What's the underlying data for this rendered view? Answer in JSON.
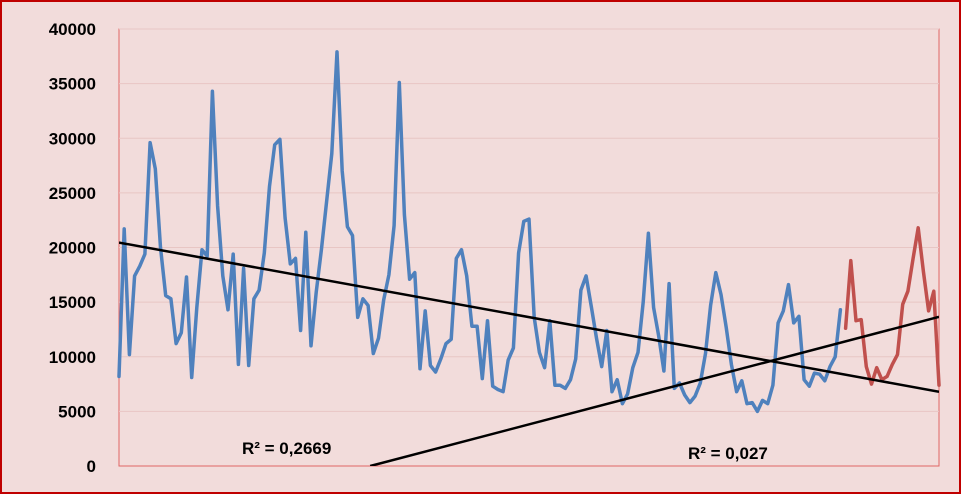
{
  "chart_data": {
    "type": "line",
    "ylim": [
      0,
      40000
    ],
    "yticks": [
      "0",
      "5000",
      "10000",
      "15000",
      "20000",
      "25000",
      "30000",
      "35000",
      "40000"
    ],
    "grid": true,
    "legend": "none",
    "series": [
      {
        "color": "#4f81bd",
        "values": [
          8200,
          21700,
          10200,
          17400,
          18300,
          19400,
          29600,
          27200,
          20000,
          15600,
          15300,
          11200,
          12200,
          17300,
          8100,
          14500,
          19800,
          19200,
          34300,
          23800,
          17400,
          14300,
          19400,
          9300,
          18100,
          9200,
          15300,
          16100,
          19500,
          25600,
          29400,
          29900,
          22700,
          18500,
          19000,
          12400,
          21400,
          11000,
          15900,
          19800,
          24200,
          28600,
          37900,
          27000,
          21900,
          21100,
          13600,
          15300,
          14700,
          10300,
          11700,
          15200,
          17500,
          22000,
          35100,
          23000,
          17100,
          17700,
          8900,
          14200,
          9200,
          8600,
          9800,
          11200,
          11600,
          19000,
          19800,
          17400,
          12800,
          12800,
          8000,
          13300,
          7300,
          7000,
          6800,
          9700,
          10800,
          19500,
          22400,
          22600,
          13600,
          10400,
          9000,
          13300,
          7400,
          7400,
          7100,
          7900,
          9800,
          16100,
          17400,
          14600,
          11700,
          9100,
          12400,
          6800,
          7900,
          5700,
          6600,
          9000,
          10400,
          15000,
          21300,
          14500,
          11900,
          8700,
          16700,
          7100,
          7600,
          6500,
          5800,
          6400,
          7600,
          10300,
          14700,
          17700,
          15700,
          12700,
          9300,
          6800,
          7800,
          5700,
          5800,
          5000,
          6000,
          5700,
          7400,
          13100,
          14200,
          16600,
          13100,
          13700,
          7900,
          7300,
          8500,
          8400,
          7800,
          9100,
          10000,
          14300
        ]
      },
      {
        "color": "#c0504d",
        "start_index": 140,
        "values": [
          12600,
          18800,
          13300,
          13400,
          9100,
          7500,
          9000,
          7900,
          8200,
          9300,
          10200,
          14800,
          16000,
          19000,
          21800,
          17800,
          14200,
          16000,
          7400
        ]
      },
      {
        "type": "trendline",
        "color": "#000000",
        "points": [
          [
            0,
            20450
          ],
          [
            158,
            6800
          ]
        ]
      },
      {
        "type": "trendline",
        "color": "#000000",
        "points": [
          [
            48.4,
            0
          ],
          [
            158,
            13650
          ]
        ]
      }
    ],
    "annotations": [
      {
        "text": "R² = 0,2669"
      },
      {
        "text": "R² = 0,027"
      }
    ]
  }
}
